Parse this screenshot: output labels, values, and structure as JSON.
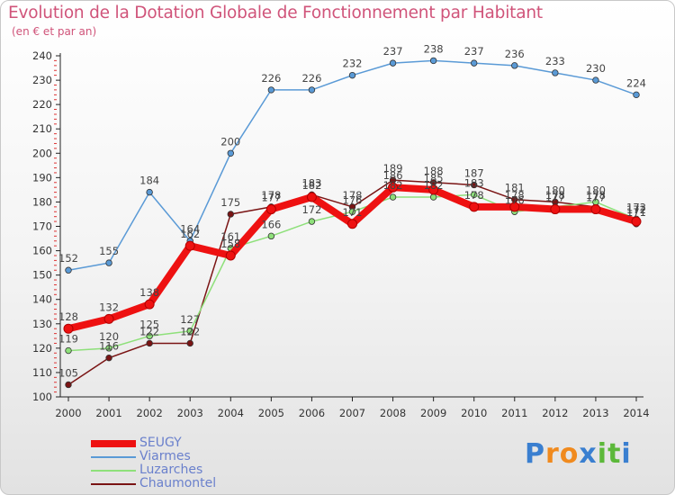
{
  "chart_data": {
    "type": "line",
    "title": "Evolution de la Dotation Globale de Fonctionnement par Habitant",
    "subtitle": "(en € et par an)",
    "xlabel": "",
    "ylabel": "",
    "ylim": [
      100,
      240
    ],
    "ytick_step": 10,
    "categories": [
      "2000",
      "2001",
      "2002",
      "2003",
      "2004",
      "2005",
      "2006",
      "2007",
      "2008",
      "2009",
      "2010",
      "2011",
      "2012",
      "2013",
      "2014"
    ],
    "grid": false,
    "legend_position": "bottom-left",
    "series": [
      {
        "name": "Viarmes",
        "color": "#5a9ad6",
        "values": [
          152,
          155,
          184,
          164,
          200,
          226,
          226,
          232,
          237,
          238,
          237,
          236,
          233,
          230,
          224
        ]
      },
      {
        "name": "Luzarches",
        "color": "#8ee07a",
        "values": [
          119,
          120,
          125,
          127,
          161,
          166,
          172,
          176,
          182,
          182,
          183,
          176,
          178,
          180,
          173
        ]
      },
      {
        "name": "Chaumontel",
        "color": "#7a1414",
        "values": [
          105,
          116,
          122,
          122,
          175,
          178,
          183,
          178,
          189,
          188,
          187,
          181,
          180,
          178,
          171
        ]
      },
      {
        "name": "SEUGY",
        "color": "#ee1111",
        "values": [
          128,
          132,
          138,
          162,
          158,
          177,
          182,
          171,
          186,
          185,
          178,
          178,
          177,
          177,
          172
        ]
      }
    ],
    "legend_order": [
      "SEUGY",
      "Viarmes",
      "Luzarches",
      "Chaumontel"
    ]
  },
  "branding": {
    "text": "Proxiti",
    "letters": [
      "P",
      "r",
      "o",
      "x",
      "i",
      "t",
      "i"
    ],
    "colors": [
      "#3a7fd0",
      "#f08a1e",
      "#f08a1e",
      "#3a7fd0",
      "#5cb83a",
      "#5cb83a",
      "#3a7fd0"
    ]
  }
}
